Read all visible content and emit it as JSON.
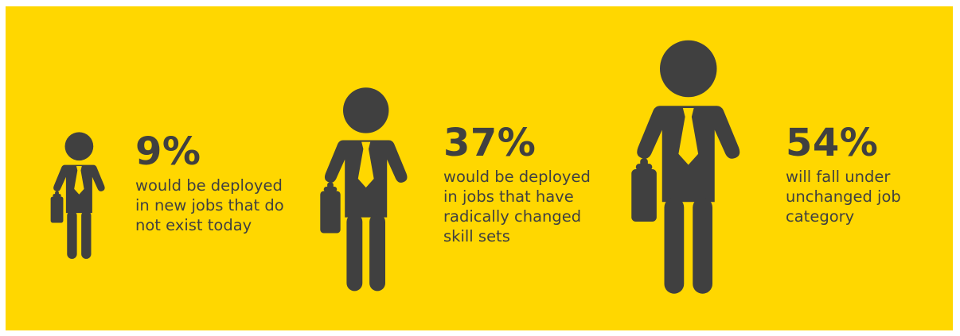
{
  "colors": {
    "background": "#FFD700",
    "figure": "#404040",
    "tie": "#FFD700",
    "text": "#404040"
  },
  "icons": {
    "person": "businessman-with-briefcase-icon"
  },
  "stats": [
    {
      "percent": "9%",
      "description": "would be deployed\nin new jobs that do\nnot exist today"
    },
    {
      "percent": "37%",
      "description": "would be deployed\nin jobs that have\nradically changed\nskill sets"
    },
    {
      "percent": "54%",
      "description": "will fall under\nunchanged job\ncategory"
    }
  ]
}
